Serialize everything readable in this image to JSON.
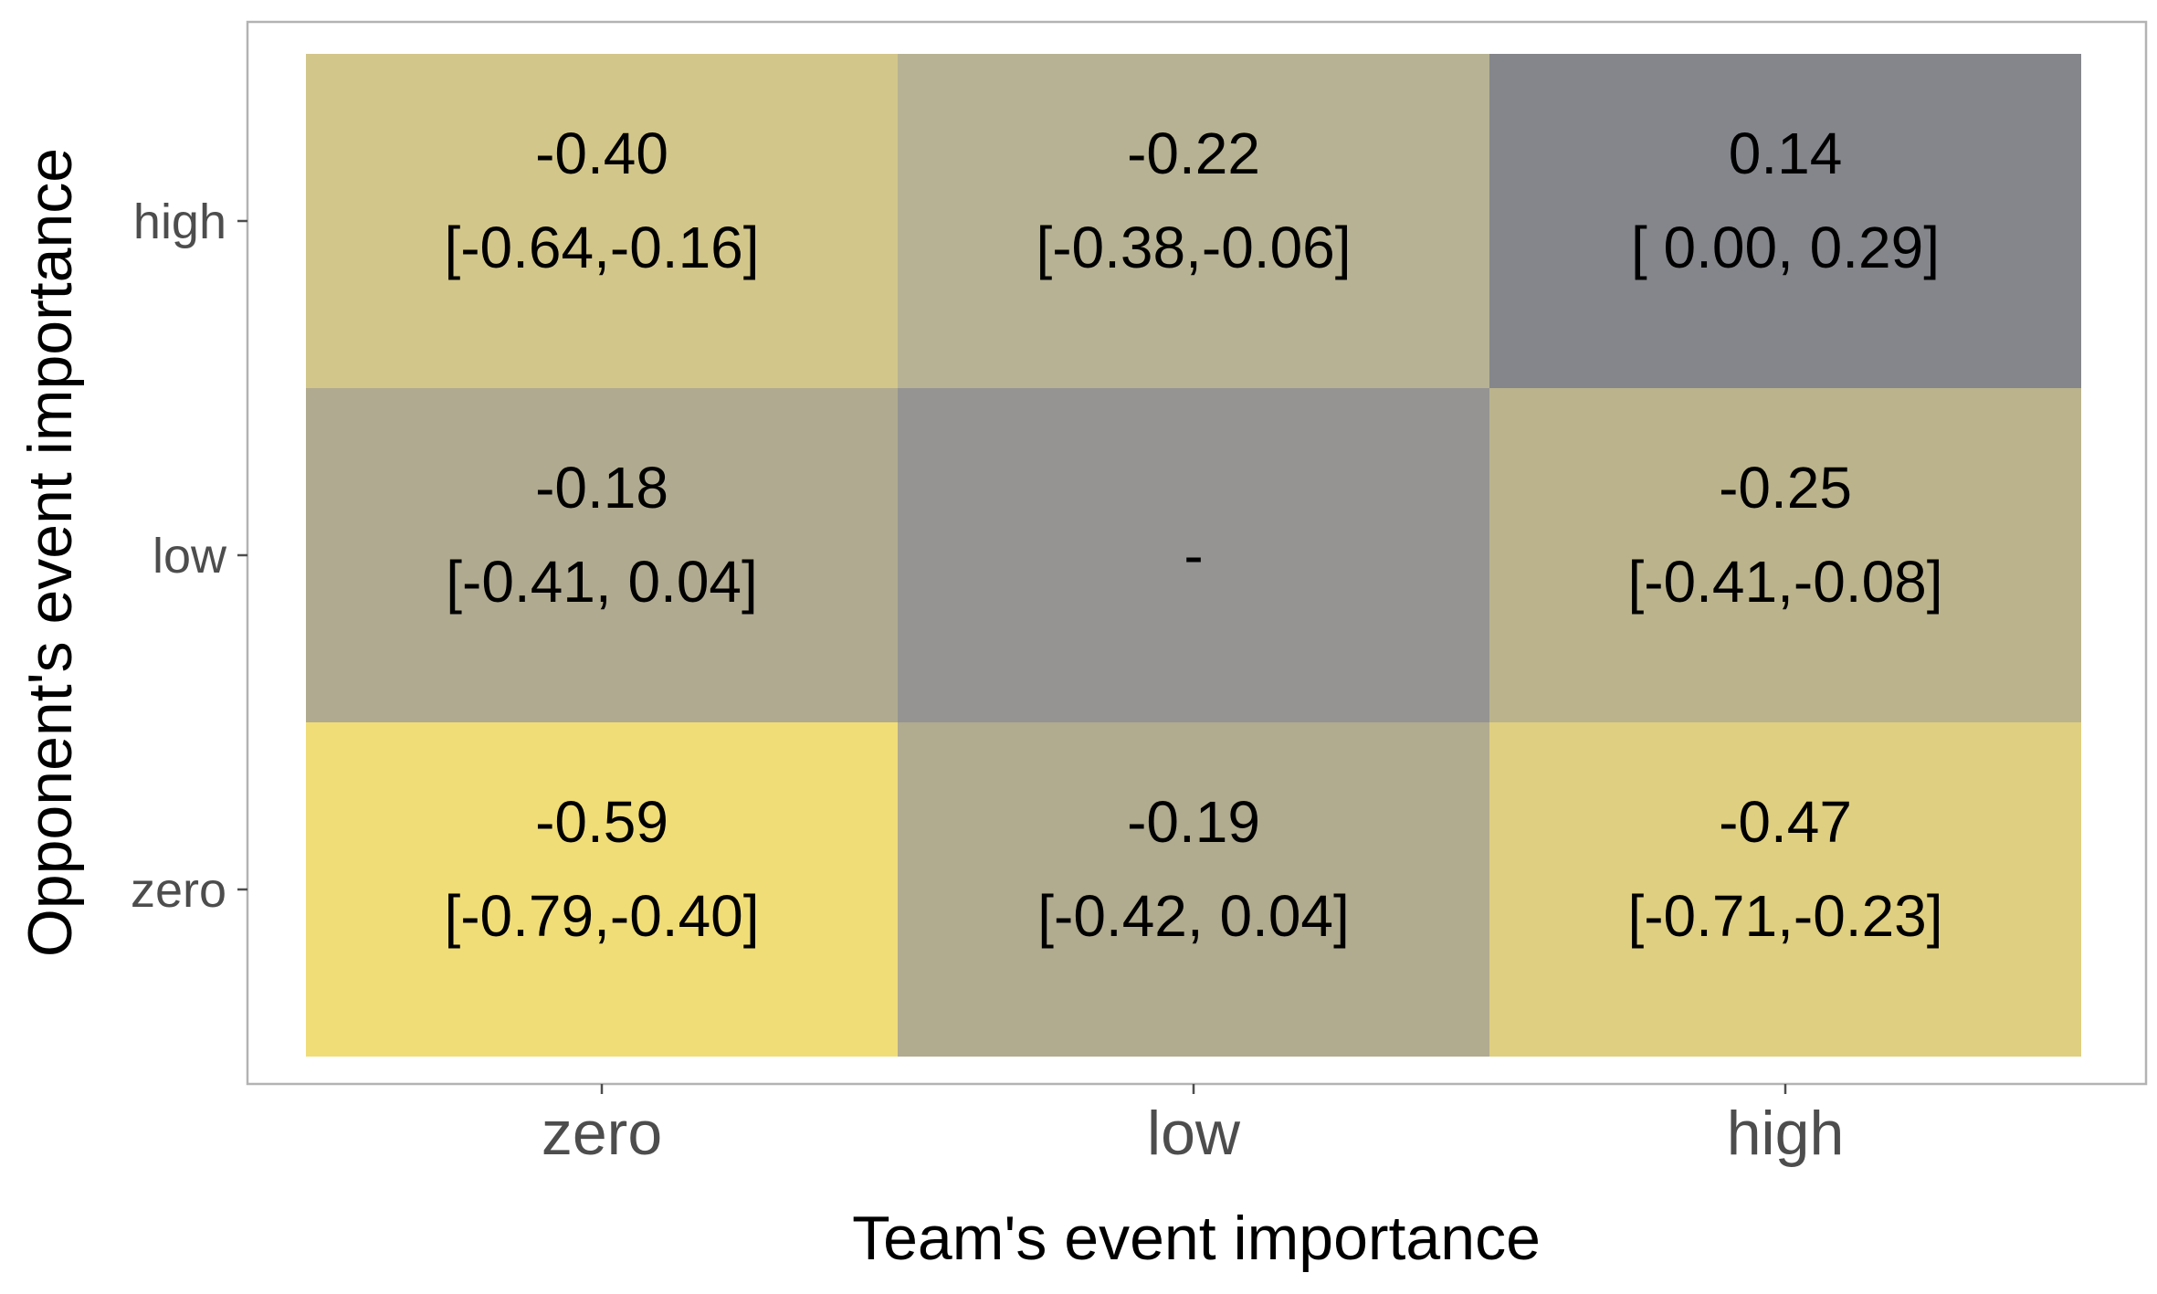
{
  "chart_data": {
    "type": "heatmap",
    "title": "",
    "xlabel": "Team's event importance",
    "ylabel": "Opponent's event importance",
    "x_categories": [
      "zero",
      "low",
      "high"
    ],
    "y_categories": [
      "zero",
      "low",
      "high"
    ],
    "grid": false,
    "legend": "none",
    "cells": [
      {
        "x": "zero",
        "y": "high",
        "value": -0.4,
        "label": "-0.40",
        "ci": "[-0.64,-0.16]",
        "color": "#d3c68a"
      },
      {
        "x": "low",
        "y": "high",
        "value": -0.22,
        "label": "-0.22",
        "ci": "[-0.38,-0.06]",
        "color": "#b7b293"
      },
      {
        "x": "high",
        "y": "high",
        "value": 0.14,
        "label": "0.14",
        "ci": "[ 0.00, 0.29]",
        "color": "#85868b"
      },
      {
        "x": "zero",
        "y": "low",
        "value": -0.18,
        "label": "-0.18",
        "ci": "[-0.41, 0.04]",
        "color": "#b0aa90"
      },
      {
        "x": "low",
        "y": "low",
        "value": null,
        "label": "-",
        "ci": "",
        "color": "#959493"
      },
      {
        "x": "high",
        "y": "low",
        "value": -0.25,
        "label": "-0.25",
        "ci": "[-0.41,-0.08]",
        "color": "#bbb38c"
      },
      {
        "x": "zero",
        "y": "zero",
        "value": -0.59,
        "label": "-0.59",
        "ci": "[-0.79,-0.40]",
        "color": "#f0dd78"
      },
      {
        "x": "low",
        "y": "zero",
        "value": -0.19,
        "label": "-0.19",
        "ci": "[-0.42, 0.04]",
        "color": "#b1ab8f"
      },
      {
        "x": "high",
        "y": "zero",
        "value": -0.47,
        "label": "-0.47",
        "ci": "[-0.71,-0.23]",
        "color": "#dfcf80"
      }
    ]
  },
  "colors": {
    "panel_border": "#b3b3b3",
    "tick_color": "#4d4d4d",
    "text_color": "#000000"
  }
}
